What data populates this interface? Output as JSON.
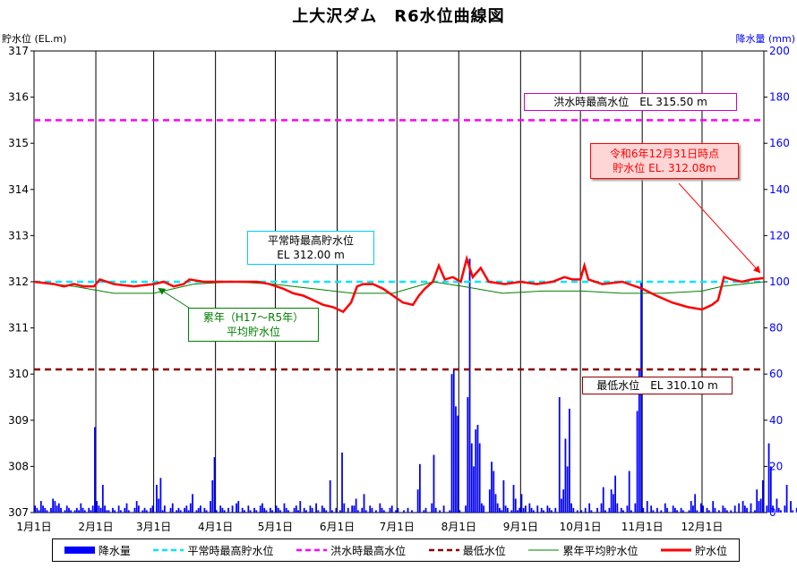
{
  "chart_data": {
    "type": "bar+line",
    "title": "上大沢ダム　R6水位曲線図",
    "ylabel_left": "貯水位 (EL.m)",
    "ylabel_right": "降水量 (mm)",
    "yleft_lim": [
      307,
      317
    ],
    "yright_lim": [
      0,
      200
    ],
    "yleft_ticks": [
      "307",
      "308",
      "309",
      "310",
      "311",
      "312",
      "313",
      "314",
      "315",
      "316",
      "317"
    ],
    "yright_ticks": [
      "0",
      "20",
      "40",
      "60",
      "80",
      "100",
      "120",
      "140",
      "160",
      "180",
      "200"
    ],
    "x_ticks": [
      "1月1日",
      "2月1日",
      "3月1日",
      "4月1日",
      "5月1日",
      "6月1日",
      "7月1日",
      "8月1日",
      "9月1日",
      "10月1日",
      "11月1日",
      "12月1日"
    ],
    "x_tick_days": [
      0,
      31,
      60,
      91,
      121,
      152,
      182,
      213,
      244,
      274,
      305,
      335
    ],
    "x_days_total": 366,
    "grid": "vertical",
    "reference_lines": [
      {
        "name": "平常時最高貯水位",
        "value": 312.0,
        "color": "#00e5ff",
        "style": "dashed"
      },
      {
        "name": "洪水時最高水位",
        "value": 315.5,
        "color": "#ff00ff",
        "style": "dashed"
      },
      {
        "name": "最低水位",
        "value": 310.1,
        "color": "#8b0000",
        "style": "dashed"
      }
    ],
    "water_level": {
      "name": "貯水位",
      "color": "#ff0000",
      "points": [
        [
          0,
          312.0
        ],
        [
          10,
          311.95
        ],
        [
          15,
          311.9
        ],
        [
          20,
          311.95
        ],
        [
          25,
          311.9
        ],
        [
          30,
          311.9
        ],
        [
          33,
          312.05
        ],
        [
          40,
          311.95
        ],
        [
          50,
          311.9
        ],
        [
          60,
          311.95
        ],
        [
          65,
          312.0
        ],
        [
          70,
          311.9
        ],
        [
          75,
          311.95
        ],
        [
          78,
          312.05
        ],
        [
          85,
          312.0
        ],
        [
          95,
          312.0
        ],
        [
          105,
          312.0
        ],
        [
          112,
          312.0
        ],
        [
          118,
          311.95
        ],
        [
          125,
          311.85
        ],
        [
          130,
          311.75
        ],
        [
          135,
          311.7
        ],
        [
          140,
          311.6
        ],
        [
          145,
          311.5
        ],
        [
          150,
          311.45
        ],
        [
          155,
          311.35
        ],
        [
          159,
          311.55
        ],
        [
          162,
          311.9
        ],
        [
          165,
          311.95
        ],
        [
          170,
          311.95
        ],
        [
          175,
          311.85
        ],
        [
          180,
          311.7
        ],
        [
          185,
          311.55
        ],
        [
          190,
          311.5
        ],
        [
          193,
          311.7
        ],
        [
          196,
          311.85
        ],
        [
          200,
          312.0
        ],
        [
          203,
          312.35
        ],
        [
          206,
          312.05
        ],
        [
          210,
          312.1
        ],
        [
          214,
          312.0
        ],
        [
          217,
          312.5
        ],
        [
          220,
          312.1
        ],
        [
          224,
          312.3
        ],
        [
          228,
          312.0
        ],
        [
          236,
          311.95
        ],
        [
          244,
          312.0
        ],
        [
          252,
          311.95
        ],
        [
          260,
          312.0
        ],
        [
          266,
          312.1
        ],
        [
          270,
          312.05
        ],
        [
          274,
          312.05
        ],
        [
          276,
          312.35
        ],
        [
          278,
          312.05
        ],
        [
          285,
          311.95
        ],
        [
          295,
          312.0
        ],
        [
          305,
          311.85
        ],
        [
          312,
          311.7
        ],
        [
          320,
          311.55
        ],
        [
          328,
          311.45
        ],
        [
          335,
          311.4
        ],
        [
          340,
          311.5
        ],
        [
          343,
          311.6
        ],
        [
          346,
          312.1
        ],
        [
          350,
          312.05
        ],
        [
          355,
          312.0
        ],
        [
          360,
          312.05
        ],
        [
          366,
          312.08
        ]
      ]
    },
    "average_level": {
      "name": "累年平均貯水位",
      "color": "#008000",
      "points": [
        [
          0,
          312.0
        ],
        [
          20,
          311.9
        ],
        [
          40,
          311.75
        ],
        [
          60,
          311.75
        ],
        [
          80,
          311.95
        ],
        [
          100,
          312.0
        ],
        [
          120,
          311.95
        ],
        [
          140,
          311.85
        ],
        [
          160,
          311.75
        ],
        [
          180,
          311.75
        ],
        [
          200,
          312.0
        ],
        [
          215,
          311.9
        ],
        [
          235,
          311.75
        ],
        [
          255,
          311.8
        ],
        [
          275,
          311.8
        ],
        [
          295,
          311.75
        ],
        [
          315,
          311.75
        ],
        [
          335,
          311.8
        ],
        [
          345,
          311.9
        ],
        [
          366,
          312.0
        ]
      ]
    },
    "rainfall": {
      "name": "降水量",
      "color": "#0000ff",
      "values": [
        3,
        2,
        1,
        5,
        3,
        2,
        1,
        0,
        2,
        6,
        5,
        3,
        4,
        2,
        0,
        1,
        3,
        2,
        1,
        0,
        1,
        2,
        1,
        4,
        2,
        1,
        0,
        2,
        1,
        3,
        37,
        5,
        3,
        2,
        12,
        3,
        1,
        1,
        0,
        2,
        1,
        0,
        3,
        1,
        0,
        2,
        4,
        1,
        0,
        0,
        2,
        5,
        3,
        0,
        1,
        2,
        1,
        0,
        2,
        3,
        0,
        12,
        6,
        15,
        1,
        3,
        0,
        0,
        2,
        4,
        0,
        1,
        2,
        1,
        0,
        2,
        3,
        1,
        4,
        8,
        0,
        1,
        2,
        3,
        0,
        2,
        1,
        0,
        5,
        14,
        24,
        1,
        0,
        3,
        2,
        1,
        0,
        2,
        0,
        3,
        0,
        4,
        5,
        0,
        2,
        1,
        0,
        3,
        1,
        0,
        2,
        1,
        0,
        3,
        4,
        2,
        1,
        0,
        2,
        1,
        0,
        3,
        2,
        1,
        0,
        4,
        2,
        1,
        0,
        0,
        2,
        3,
        1,
        5,
        0,
        2,
        1,
        0,
        3,
        2,
        0,
        4,
        1,
        0,
        3,
        2,
        1,
        0,
        14,
        1,
        0,
        2,
        0,
        1,
        26,
        4,
        0,
        2,
        0,
        3,
        3,
        6,
        1,
        0,
        2,
        8,
        1,
        0,
        3,
        2,
        0,
        1,
        0,
        4,
        2,
        1,
        0,
        0,
        2,
        3,
        0,
        1,
        2,
        0,
        0,
        1,
        0,
        2,
        0,
        1,
        0,
        0,
        10,
        21,
        0,
        1,
        2,
        0,
        0,
        4,
        25,
        2,
        0,
        1,
        0,
        3,
        0,
        0,
        1,
        60,
        62,
        46,
        42,
        1,
        0,
        0,
        3,
        50,
        110,
        30,
        20,
        36,
        38,
        30,
        4,
        3,
        0,
        0,
        10,
        22,
        18,
        8,
        4,
        2,
        1,
        14,
        3,
        2,
        0,
        1,
        12,
        6,
        1,
        2,
        8,
        2,
        3,
        0,
        4,
        2,
        1,
        0,
        3,
        0,
        2,
        1,
        0,
        3,
        2,
        1,
        0,
        2,
        0,
        50,
        6,
        10,
        32,
        20,
        45,
        4,
        2,
        0,
        1,
        0,
        1,
        0,
        2,
        0,
        4,
        1,
        0,
        0,
        2,
        0,
        4,
        11,
        1,
        0,
        2,
        10,
        8,
        16,
        4,
        0,
        2,
        1,
        0,
        3,
        18,
        1,
        0,
        4,
        44,
        62,
        100,
        2,
        0,
        5,
        0,
        3,
        1,
        0,
        2,
        0,
        1,
        0,
        4,
        2,
        0,
        0,
        3,
        2,
        1,
        0,
        2,
        1,
        0,
        0,
        1,
        5,
        3,
        8,
        1,
        0,
        4,
        3,
        0,
        2,
        1,
        0,
        5,
        2,
        0,
        1,
        0,
        3,
        2,
        1,
        0,
        1,
        0,
        3,
        0,
        4,
        0,
        5,
        3,
        2,
        0,
        4,
        0,
        1,
        10,
        5,
        6,
        14,
        0,
        3,
        30,
        20,
        3,
        0,
        6,
        2,
        1,
        0,
        3,
        12,
        0,
        5,
        1,
        0,
        2,
        4,
        0,
        1,
        0,
        2,
        3,
        14,
        2,
        1,
        4,
        0,
        2,
        3,
        1,
        0,
        16,
        2,
        1,
        4,
        6,
        0,
        2,
        0,
        24
      ]
    },
    "annotations": {
      "flood": "洪水時最高水位　EL 315.50 m",
      "normal_line1": "平常時最高貯水位",
      "normal_line2": "EL 312.00 m",
      "min": "最低水位　EL 310.10 m",
      "avg_line1": "累年（H17～R5年）",
      "avg_line2": "平均貯水位",
      "current_line1": "令和6年12月31日時点",
      "current_line2": "貯水位 EL. 312.08m"
    },
    "legend": [
      "降水量",
      "平常時最高貯水位",
      "洪水時最高水位",
      "最低水位",
      "累年平均貯水位",
      "貯水位"
    ]
  }
}
